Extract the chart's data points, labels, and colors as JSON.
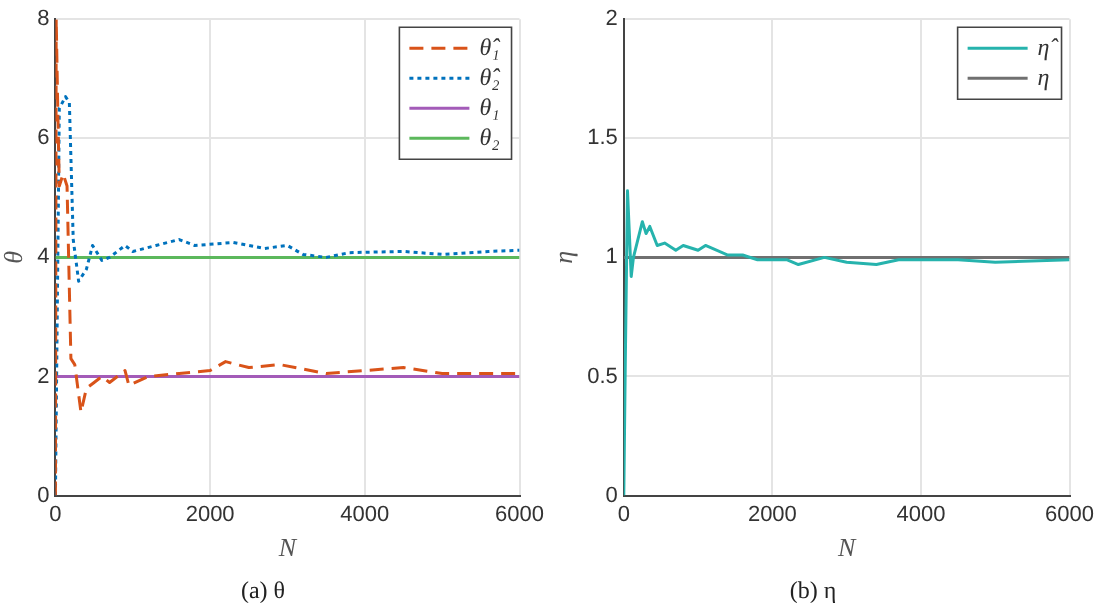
{
  "chart_data": [
    {
      "type": "line",
      "title": "(a) θ",
      "xlabel": "N",
      "ylabel": "θ",
      "xlim": [
        0,
        6000
      ],
      "xticks": [
        0,
        2000,
        4000,
        6000
      ],
      "ylim": [
        0,
        8
      ],
      "yticks": [
        0,
        2,
        4,
        6,
        8
      ],
      "grid": true,
      "legend": "top right",
      "marker": "none",
      "series": [
        {
          "name": "θ̂₁",
          "color": "#d95319",
          "line_style": "dashed",
          "x": [
            0,
            10,
            30,
            50,
            100,
            150,
            200,
            250,
            330,
            400,
            500,
            600,
            700,
            900,
            950,
            1200,
            1600,
            2000,
            2200,
            2500,
            2900,
            3500,
            4000,
            4500,
            5000,
            6000
          ],
          "values": [
            0,
            8,
            6.5,
            5.2,
            5.4,
            5.2,
            2.3,
            2.2,
            1.4,
            1.8,
            1.9,
            2.0,
            1.9,
            2.1,
            1.85,
            2.0,
            2.05,
            2.1,
            2.25,
            2.15,
            2.2,
            2.05,
            2.1,
            2.15,
            2.05,
            2.05
          ]
        },
        {
          "name": "θ̂₂",
          "color": "#0072bd",
          "line_style": "dotted",
          "x": [
            0,
            50,
            130,
            180,
            230,
            300,
            400,
            480,
            600,
            700,
            900,
            1000,
            1300,
            1600,
            1800,
            2300,
            2700,
            3000,
            3200,
            3500,
            3800,
            4500,
            5000,
            5600,
            6000
          ],
          "values": [
            0,
            6.5,
            6.7,
            6.6,
            4.3,
            3.6,
            3.8,
            4.2,
            3.95,
            4.0,
            4.2,
            4.1,
            4.2,
            4.3,
            4.2,
            4.25,
            4.15,
            4.2,
            4.05,
            4.0,
            4.08,
            4.1,
            4.05,
            4.1,
            4.12
          ]
        },
        {
          "name": "θ₁",
          "color": "#a35bb8",
          "line_style": "solid",
          "x": [
            0,
            6000
          ],
          "values": [
            2,
            2
          ]
        },
        {
          "name": "θ₂",
          "color": "#5cb85c",
          "line_style": "solid",
          "x": [
            0,
            6000
          ],
          "values": [
            4,
            4
          ]
        }
      ]
    },
    {
      "type": "line",
      "title": "(b) η",
      "xlabel": "N",
      "ylabel": "η",
      "xlim": [
        0,
        6000
      ],
      "xticks": [
        0,
        2000,
        4000,
        6000
      ],
      "ylim": [
        0,
        2
      ],
      "yticks": [
        0,
        0.5,
        1,
        1.5,
        2
      ],
      "grid": true,
      "legend": "top right",
      "marker": "none",
      "series": [
        {
          "name": "η̂",
          "color": "#26b3ad",
          "line_style": "solid",
          "x": [
            0,
            20,
            50,
            100,
            130,
            250,
            300,
            350,
            450,
            550,
            700,
            800,
            1000,
            1100,
            1400,
            1600,
            1800,
            2200,
            2350,
            2700,
            3000,
            3400,
            3700,
            4500,
            5000,
            6000
          ],
          "values": [
            0,
            0.55,
            1.28,
            0.92,
            1.0,
            1.15,
            1.1,
            1.13,
            1.05,
            1.06,
            1.03,
            1.05,
            1.03,
            1.05,
            1.01,
            1.01,
            0.99,
            0.99,
            0.97,
            1.0,
            0.98,
            0.97,
            0.99,
            0.99,
            0.98,
            0.99
          ]
        },
        {
          "name": "η",
          "color": "#707070",
          "line_style": "solid",
          "x": [
            0,
            6000
          ],
          "values": [
            1,
            1
          ]
        }
      ]
    }
  ]
}
